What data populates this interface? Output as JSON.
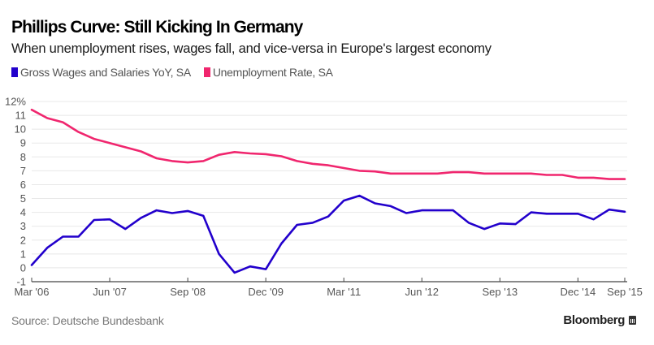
{
  "header": {
    "title": "Phillips Curve: Still Kicking In Germany",
    "subtitle": "When unemployment rises, wages fall, and vice-versa in Europe's largest economy"
  },
  "footer": {
    "source": "Source: Deutsche Bundesbank",
    "brand": "Bloomberg",
    "brand_icon": "bloomberg-terminal-icon"
  },
  "colors": {
    "wages": "#2200cc",
    "unemployment": "#f0266e",
    "grid": "#e8e8e8",
    "axis": "#444444"
  },
  "chart_data": {
    "type": "line",
    "title": "Phillips Curve: Still Kicking In Germany",
    "xlabel": "",
    "ylabel": "",
    "y_unit": "%",
    "ylim": [
      -1,
      12
    ],
    "yticks": [
      -1,
      0,
      1,
      2,
      3,
      4,
      5,
      6,
      7,
      8,
      9,
      10,
      11,
      12
    ],
    "ytick_labels": [
      "-1",
      "0",
      "1",
      "2",
      "3",
      "4",
      "5",
      "6",
      "7",
      "8",
      "9",
      "10",
      "11",
      "12%"
    ],
    "grid": true,
    "legend_position": "top-left",
    "x": [
      "Mar '06",
      "Jun '06",
      "Sep '06",
      "Dec '06",
      "Mar '07",
      "Jun '07",
      "Sep '07",
      "Dec '07",
      "Mar '08",
      "Jun '08",
      "Sep '08",
      "Dec '08",
      "Mar '09",
      "Jun '09",
      "Sep '09",
      "Dec '09",
      "Mar '10",
      "Jun '10",
      "Sep '10",
      "Dec '10",
      "Mar '11",
      "Jun '11",
      "Sep '11",
      "Dec '11",
      "Mar '12",
      "Jun '12",
      "Sep '12",
      "Dec '12",
      "Mar '13",
      "Jun '13",
      "Sep '13",
      "Dec '13",
      "Mar '14",
      "Jun '14",
      "Sep '14",
      "Dec '14",
      "Mar '15",
      "Jun '15",
      "Sep '15"
    ],
    "xtick_labels": [
      {
        "index": 0,
        "label": "Mar '06"
      },
      {
        "index": 5,
        "label": "Jun '07"
      },
      {
        "index": 10,
        "label": "Sep '08"
      },
      {
        "index": 15,
        "label": "Dec '09"
      },
      {
        "index": 20,
        "label": "Mar '11"
      },
      {
        "index": 25,
        "label": "Jun '12"
      },
      {
        "index": 30,
        "label": "Sep '13"
      },
      {
        "index": 35,
        "label": "Dec '14"
      },
      {
        "index": 38,
        "label": "Sep '15"
      }
    ],
    "series": [
      {
        "name": "Gross Wages and Salaries YoY, SA",
        "color": "#2200cc",
        "values": [
          0.2,
          1.45,
          2.25,
          2.25,
          3.45,
          3.5,
          2.8,
          3.6,
          4.15,
          3.95,
          4.1,
          3.75,
          1.0,
          -0.35,
          0.1,
          -0.1,
          1.75,
          3.1,
          3.25,
          3.7,
          4.85,
          5.2,
          4.65,
          4.45,
          3.95,
          4.15,
          4.15,
          4.15,
          3.25,
          2.8,
          3.2,
          3.15,
          4.0,
          3.9,
          3.9,
          3.9,
          3.5,
          4.2,
          4.05
        ]
      },
      {
        "name": "Unemployment Rate, SA",
        "color": "#f0266e",
        "values": [
          11.4,
          10.8,
          10.5,
          9.8,
          9.3,
          9.0,
          8.7,
          8.4,
          7.9,
          7.7,
          7.6,
          7.7,
          8.15,
          8.35,
          8.25,
          8.2,
          8.05,
          7.7,
          7.5,
          7.4,
          7.2,
          7.0,
          6.95,
          6.8,
          6.8,
          6.8,
          6.8,
          6.9,
          6.9,
          6.8,
          6.8,
          6.8,
          6.8,
          6.7,
          6.7,
          6.5,
          6.5,
          6.4,
          6.4
        ]
      }
    ]
  }
}
